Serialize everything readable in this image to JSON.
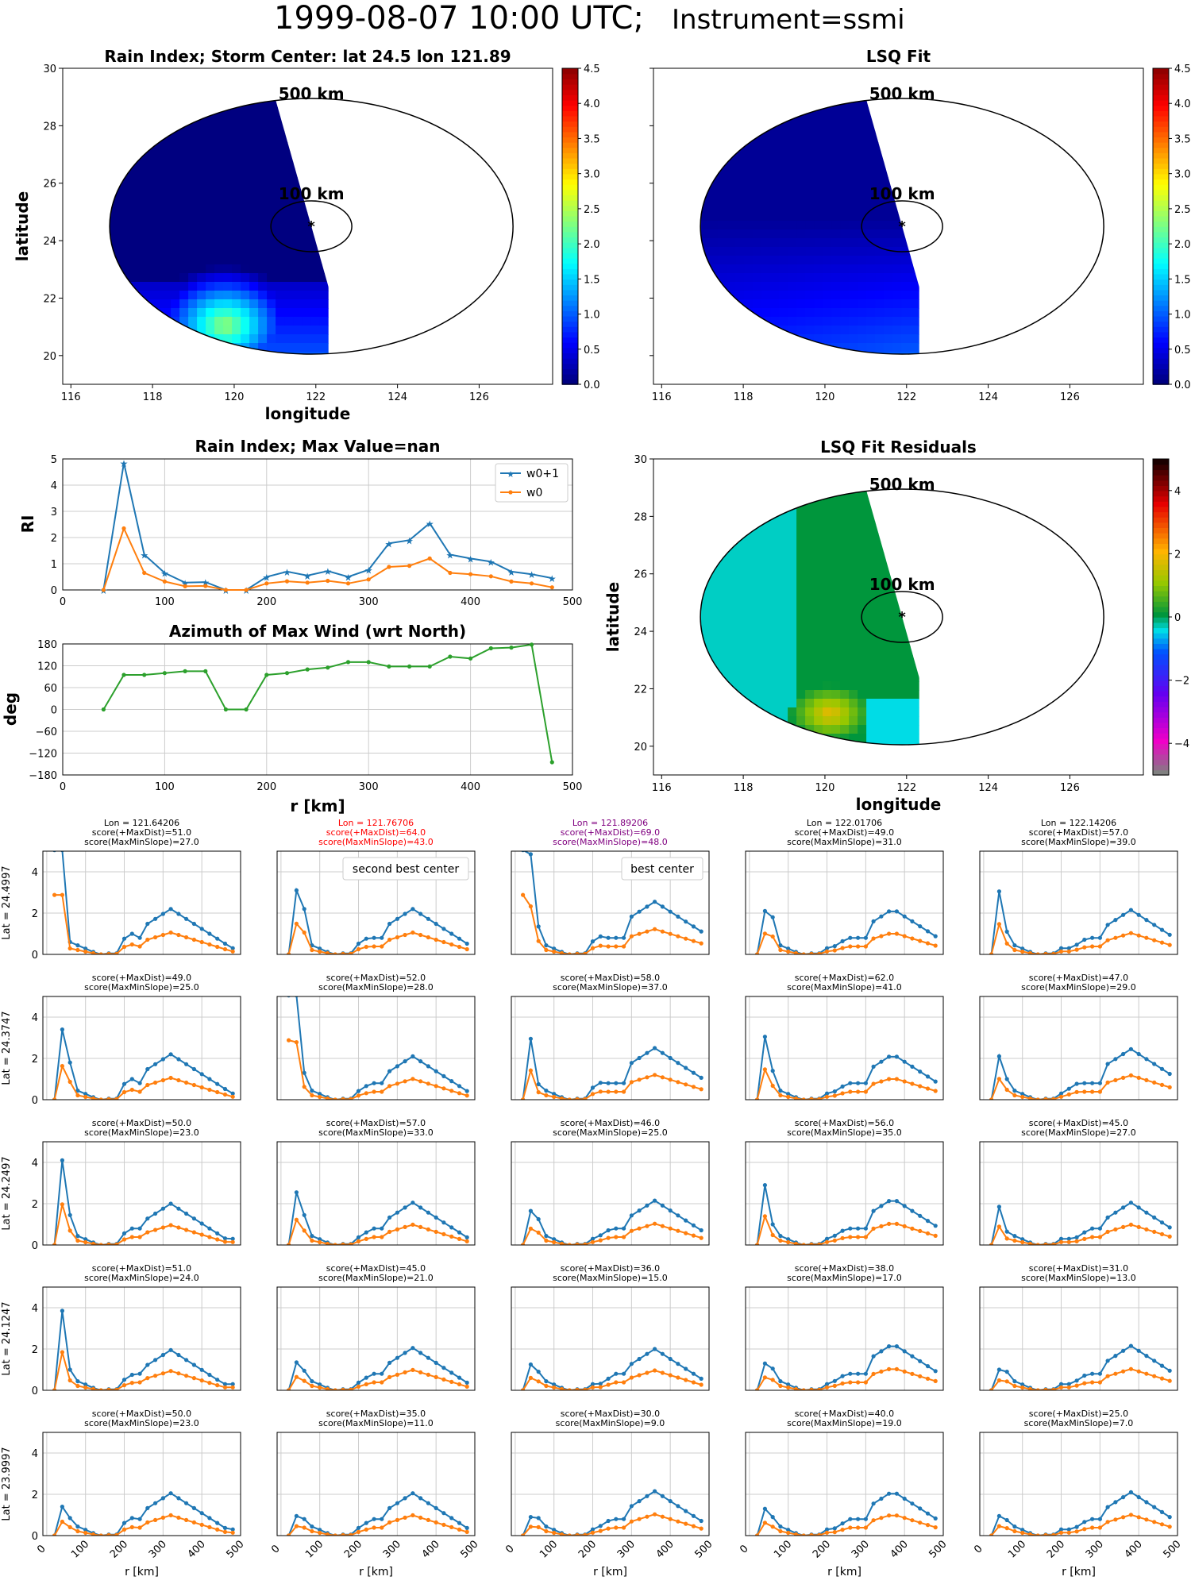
{
  "title": {
    "main": "1999-08-07 10:00 UTC;",
    "instrument": "Instrument=ssmi"
  },
  "colors": {
    "blue": "#1f77b4",
    "orange": "#ff7f0e",
    "green": "#2ca02c",
    "red": "#ff0000",
    "purple": "#800080",
    "grid": "#cccccc"
  },
  "chart_data": [
    {
      "id": "map_rain_index",
      "type": "heatmap",
      "title": "Rain Index; Storm Center: lat 24.5 lon 121.89",
      "xlabel": "longitude",
      "ylabel": "latitude",
      "xlim": [
        115.8,
        127.8
      ],
      "ylim": [
        19.0,
        30.0
      ],
      "xticks": [
        116,
        118,
        120,
        122,
        124,
        126
      ],
      "yticks": [
        20,
        22,
        24,
        26,
        28,
        30
      ],
      "colorbar": {
        "colormap": "jet",
        "min": 0.0,
        "max": 4.5,
        "ticks": [
          "0.0",
          "0.5",
          "1.0",
          "1.5",
          "2.0",
          "2.5",
          "3.0",
          "3.5",
          "4.0",
          "4.5"
        ]
      },
      "center": {
        "lat": 24.5,
        "lon": 121.89
      },
      "rings": [
        {
          "label": "100 km",
          "radius_km": 100
        },
        {
          "label": "500 km",
          "radius_km": 500
        }
      ]
    },
    {
      "id": "map_lsq_fit",
      "type": "heatmap",
      "title": "LSQ Fit",
      "xlim": [
        115.8,
        127.8
      ],
      "ylim": [
        19.0,
        30.0
      ],
      "xticks": [
        116,
        118,
        120,
        122,
        124,
        126
      ],
      "colorbar": {
        "colormap": "jet",
        "min": 0.0,
        "max": 4.5,
        "ticks": [
          "0.0",
          "0.5",
          "1.0",
          "1.5",
          "2.0",
          "2.5",
          "3.0",
          "3.5",
          "4.0",
          "4.5"
        ]
      },
      "rings": [
        {
          "label": "100 km",
          "radius_km": 100
        },
        {
          "label": "500 km",
          "radius_km": 500
        }
      ]
    },
    {
      "id": "rain_index_profile",
      "type": "line",
      "title": "Rain Index; Max Value=nan",
      "ylabel": "RI",
      "xlim": [
        0,
        500
      ],
      "ylim": [
        0,
        5
      ],
      "xticks": [
        0,
        100,
        200,
        300,
        400,
        500
      ],
      "yticks": [
        0,
        1,
        2,
        3,
        4,
        5
      ],
      "x": [
        40,
        60,
        80,
        100,
        120,
        140,
        160,
        180,
        200,
        220,
        240,
        260,
        280,
        300,
        320,
        340,
        360,
        380,
        400,
        420,
        440,
        460,
        480
      ],
      "series": [
        {
          "name": "w0+1",
          "values": [
            0,
            4.85,
            1.35,
            0.65,
            0.28,
            0.3,
            0,
            0,
            0.5,
            0.7,
            0.55,
            0.72,
            0.5,
            0.77,
            1.78,
            1.9,
            2.55,
            1.35,
            1.2,
            1.08,
            0.7,
            0.6,
            0.45
          ]
        },
        {
          "name": "w0",
          "values": [
            0,
            2.35,
            0.65,
            0.32,
            0.14,
            0.15,
            0,
            0,
            0.25,
            0.33,
            0.28,
            0.35,
            0.25,
            0.4,
            0.88,
            0.92,
            1.2,
            0.65,
            0.6,
            0.52,
            0.32,
            0.25,
            0.1
          ]
        }
      ],
      "legend": "top-right"
    },
    {
      "id": "azimuth_profile",
      "type": "line",
      "title": "Azimuth of Max Wind (wrt North)",
      "xlabel": "r [km]",
      "ylabel": "deg",
      "xlim": [
        0,
        500
      ],
      "ylim": [
        -180,
        180
      ],
      "xticks": [
        0,
        100,
        200,
        300,
        400,
        500
      ],
      "yticks": [
        180,
        120,
        60,
        0,
        -60,
        -120,
        -180
      ],
      "x": [
        40,
        60,
        80,
        100,
        120,
        140,
        160,
        180,
        200,
        220,
        240,
        260,
        280,
        300,
        320,
        340,
        360,
        380,
        400,
        420,
        440,
        460,
        480
      ],
      "values": [
        0,
        95,
        95,
        100,
        105,
        105,
        0,
        0,
        95,
        100,
        110,
        115,
        130,
        130,
        118,
        118,
        118,
        145,
        140,
        168,
        170,
        178,
        -145
      ]
    },
    {
      "id": "map_residuals",
      "type": "heatmap",
      "title": "LSQ Fit Residuals",
      "xlabel": "longitude",
      "ylabel": "latitude",
      "xlim": [
        115.8,
        127.8
      ],
      "ylim": [
        19.0,
        30.0
      ],
      "xticks": [
        116,
        118,
        120,
        122,
        124,
        126
      ],
      "yticks": [
        20,
        22,
        24,
        26,
        28,
        30
      ],
      "colorbar": {
        "min": -5,
        "max": 5,
        "ticks": [
          "4",
          "2",
          "0",
          "−2",
          "−4"
        ]
      },
      "rings": [
        {
          "label": "100 km",
          "radius_km": 100
        },
        {
          "label": "500 km",
          "radius_km": 500
        }
      ]
    },
    {
      "id": "center_grid",
      "type": "line",
      "xlabel": "r [km]",
      "xticks": [
        0,
        100,
        200,
        300,
        400,
        500
      ],
      "yticks": [
        0,
        2,
        4
      ],
      "ylim": [
        0,
        5
      ],
      "columns": [
        {
          "lon_label": "Lon = 121.64206",
          "color": ""
        },
        {
          "lon_label": "Lon = 121.76706",
          "color": "red"
        },
        {
          "lon_label": "Lon = 121.89206",
          "color": "purple"
        },
        {
          "lon_label": "Lon = 122.01706",
          "color": ""
        },
        {
          "lon_label": "Lon = 122.14206",
          "color": ""
        }
      ],
      "rows": [
        {
          "lat_label": "Lat = 24.4997"
        },
        {
          "lat_label": "Lat = 24.3747"
        },
        {
          "lat_label": "Lat = 24.2497"
        },
        {
          "lat_label": "Lat = 24.1247"
        },
        {
          "lat_label": "Lat = 23.9997"
        }
      ],
      "cells": [
        [
          {
            "l1": "score(+MaxDist)=51.0",
            "l2": "score(MaxMinSlope)=27.0",
            "peak": 6.0,
            "sec": 0.6,
            "late": 2.2,
            "late_pos": 320
          },
          {
            "l1": "score(+MaxDist)=64.0",
            "l2": "score(MaxMinSlope)=43.0",
            "peak": 3.1,
            "sec": 2.2,
            "late": 2.2,
            "late_pos": 340,
            "badge": "second best center"
          },
          {
            "l1": "score(+MaxDist)=69.0",
            "l2": "score(MaxMinSlope)=48.0",
            "peak": 4.85,
            "sec": 1.35,
            "late": 2.55,
            "late_pos": 360,
            "badge": "best center"
          },
          {
            "l1": "score(+MaxDist)=49.0",
            "l2": "score(MaxMinSlope)=31.0",
            "peak": 2.1,
            "sec": 1.8,
            "late": 2.2,
            "late_pos": 370
          },
          {
            "l1": "score(+MaxDist)=57.0",
            "l2": "score(MaxMinSlope)=39.0",
            "peak": 3.05,
            "sec": 1.1,
            "late": 2.15,
            "late_pos": 380
          }
        ],
        [
          {
            "l1": "score(+MaxDist)=49.0",
            "l2": "score(MaxMinSlope)=25.0",
            "peak": 3.4,
            "sec": 1.8,
            "late": 2.2,
            "late_pos": 320
          },
          {
            "l1": "score(+MaxDist)=52.0",
            "l2": "score(MaxMinSlope)=28.0",
            "peak": 5.8,
            "sec": 1.3,
            "late": 2.1,
            "late_pos": 340
          },
          {
            "l1": "score(+MaxDist)=58.0",
            "l2": "score(MaxMinSlope)=37.0",
            "peak": 2.95,
            "sec": 0.75,
            "late": 2.5,
            "late_pos": 360
          },
          {
            "l1": "score(+MaxDist)=62.0",
            "l2": "score(MaxMinSlope)=41.0",
            "peak": 3.05,
            "sec": 1.4,
            "late": 2.2,
            "late_pos": 370
          },
          {
            "l1": "score(+MaxDist)=47.0",
            "l2": "score(MaxMinSlope)=29.0",
            "peak": 2.1,
            "sec": 1.0,
            "late": 2.45,
            "late_pos": 380
          }
        ],
        [
          {
            "l1": "score(+MaxDist)=50.0",
            "l2": "score(MaxMinSlope)=23.0",
            "peak": 4.1,
            "sec": 1.45,
            "late": 2.0,
            "late_pos": 320
          },
          {
            "l1": "score(+MaxDist)=57.0",
            "l2": "score(MaxMinSlope)=33.0",
            "peak": 2.55,
            "sec": 1.45,
            "late": 2.05,
            "late_pos": 340
          },
          {
            "l1": "score(+MaxDist)=46.0",
            "l2": "score(MaxMinSlope)=25.0",
            "peak": 1.65,
            "sec": 1.25,
            "late": 2.15,
            "late_pos": 360
          },
          {
            "l1": "score(+MaxDist)=56.0",
            "l2": "score(MaxMinSlope)=35.0",
            "peak": 2.9,
            "sec": 1.0,
            "late": 2.25,
            "late_pos": 370
          },
          {
            "l1": "score(+MaxDist)=45.0",
            "l2": "score(MaxMinSlope)=27.0",
            "peak": 1.85,
            "sec": 0.65,
            "late": 2.05,
            "late_pos": 380
          }
        ],
        [
          {
            "l1": "score(+MaxDist)=51.0",
            "l2": "score(MaxMinSlope)=24.0",
            "peak": 3.85,
            "sec": 1.0,
            "late": 1.95,
            "late_pos": 320
          },
          {
            "l1": "score(+MaxDist)=45.0",
            "l2": "score(MaxMinSlope)=21.0",
            "peak": 1.35,
            "sec": 0.95,
            "late": 2.05,
            "late_pos": 340
          },
          {
            "l1": "score(+MaxDist)=36.0",
            "l2": "score(MaxMinSlope)=15.0",
            "peak": 1.25,
            "sec": 0.9,
            "late": 2.0,
            "late_pos": 360
          },
          {
            "l1": "score(+MaxDist)=38.0",
            "l2": "score(MaxMinSlope)=17.0",
            "peak": 1.3,
            "sec": 1.05,
            "late": 2.25,
            "late_pos": 370
          },
          {
            "l1": "score(+MaxDist)=31.0",
            "l2": "score(MaxMinSlope)=13.0",
            "peak": 1.0,
            "sec": 0.9,
            "late": 2.15,
            "late_pos": 380
          }
        ],
        [
          {
            "l1": "score(+MaxDist)=50.0",
            "l2": "score(MaxMinSlope)=23.0",
            "peak": 1.4,
            "sec": 0.85,
            "late": 2.05,
            "late_pos": 320
          },
          {
            "l1": "score(+MaxDist)=35.0",
            "l2": "score(MaxMinSlope)=11.0",
            "peak": 0.95,
            "sec": 0.8,
            "late": 2.05,
            "late_pos": 340
          },
          {
            "l1": "score(+MaxDist)=30.0",
            "l2": "score(MaxMinSlope)=9.0",
            "peak": 0.9,
            "sec": 0.85,
            "late": 2.15,
            "late_pos": 360
          },
          {
            "l1": "score(+MaxDist)=40.0",
            "l2": "score(MaxMinSlope)=19.0",
            "peak": 1.3,
            "sec": 0.9,
            "late": 2.15,
            "late_pos": 370
          },
          {
            "l1": "score(+MaxDist)=25.0",
            "l2": "score(MaxMinSlope)=7.0",
            "peak": 0.95,
            "sec": 0.75,
            "late": 2.1,
            "late_pos": 380
          }
        ]
      ]
    }
  ]
}
